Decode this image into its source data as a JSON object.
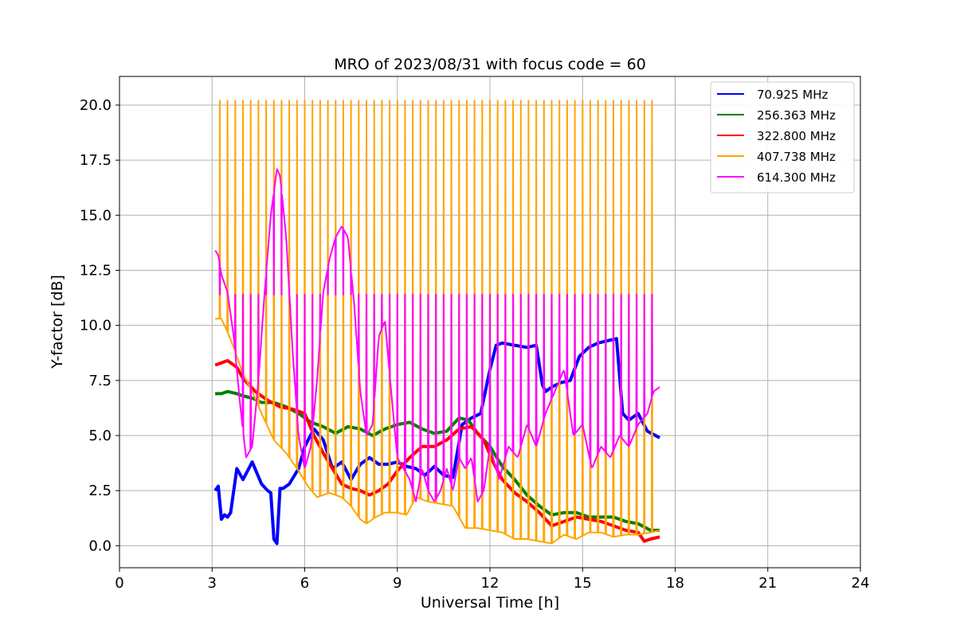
{
  "chart_data": {
    "type": "line",
    "title": "MRO of 2023/08/31 with focus code = 60",
    "xlabel": "Universal Time [h]",
    "ylabel": "Y-factor [dB]",
    "xlim": [
      0,
      24
    ],
    "ylim": [
      -1,
      21.3
    ],
    "xticks": [
      0,
      3,
      6,
      9,
      12,
      15,
      18,
      21,
      24
    ],
    "xtick_labels": [
      "0",
      "3",
      "6",
      "9",
      "12",
      "15",
      "18",
      "21",
      "24"
    ],
    "yticks": [
      0,
      2.5,
      5,
      7.5,
      10,
      12.5,
      15,
      17.5,
      20
    ],
    "ytick_labels": [
      "0.0",
      "2.5",
      "5.0",
      "7.5",
      "10.0",
      "12.5",
      "15.0",
      "17.5",
      "20.0"
    ],
    "grid": true,
    "legend_position": "top-right",
    "series": [
      {
        "name": "  70.925 MHz",
        "color": "#0000ff",
        "x": [
          3.1,
          3.2,
          3.3,
          3.4,
          3.5,
          3.6,
          3.8,
          4.0,
          4.3,
          4.6,
          4.8,
          4.9,
          5.0,
          5.1,
          5.2,
          5.3,
          5.5,
          5.8,
          6.0,
          6.3,
          6.6,
          6.9,
          7.2,
          7.5,
          7.8,
          8.1,
          8.4,
          8.7,
          9.0,
          9.3,
          9.6,
          9.9,
          10.2,
          10.5,
          10.8,
          11.1,
          11.4,
          11.7,
          12.0,
          12.2,
          12.4,
          12.8,
          13.2,
          13.5,
          13.7,
          13.8,
          14.0,
          14.3,
          14.6,
          14.9,
          15.2,
          15.5,
          15.8,
          16.1,
          16.3,
          16.5,
          16.8,
          17.1,
          17.5
        ],
        "y": [
          2.5,
          2.7,
          1.2,
          1.4,
          1.3,
          1.5,
          3.5,
          3.0,
          3.8,
          2.8,
          2.5,
          2.4,
          0.3,
          0.1,
          2.6,
          2.6,
          2.8,
          3.5,
          4.5,
          5.3,
          4.8,
          3.5,
          3.8,
          3.0,
          3.7,
          4.0,
          3.7,
          3.7,
          3.8,
          3.6,
          3.5,
          3.2,
          3.6,
          3.2,
          3.1,
          5.5,
          5.8,
          6.0,
          8.0,
          9.1,
          9.2,
          9.1,
          9.0,
          9.1,
          7.3,
          7.0,
          7.2,
          7.4,
          7.5,
          8.6,
          9.0,
          9.2,
          9.3,
          9.4,
          6.0,
          5.7,
          6.0,
          5.2,
          4.9
        ]
      },
      {
        "name": "256.363 MHz",
        "color": "#008000",
        "x": [
          3.1,
          3.3,
          3.5,
          3.8,
          4.0,
          4.3,
          4.6,
          5.0,
          5.4,
          5.8,
          6.2,
          6.6,
          7.0,
          7.4,
          7.8,
          8.2,
          8.6,
          9.0,
          9.4,
          9.8,
          10.2,
          10.6,
          11.0,
          11.3,
          11.6,
          12.0,
          12.4,
          12.8,
          13.2,
          13.6,
          14.0,
          14.4,
          14.8,
          15.2,
          15.6,
          16.0,
          16.4,
          16.8,
          17.2,
          17.5
        ],
        "y": [
          6.9,
          6.9,
          7.0,
          6.9,
          6.8,
          6.7,
          6.5,
          6.5,
          6.3,
          6.0,
          5.6,
          5.4,
          5.1,
          5.4,
          5.3,
          5.0,
          5.3,
          5.5,
          5.6,
          5.3,
          5.1,
          5.2,
          5.8,
          5.7,
          5.1,
          4.5,
          3.6,
          3.0,
          2.3,
          1.8,
          1.4,
          1.5,
          1.5,
          1.3,
          1.3,
          1.3,
          1.1,
          1.0,
          0.7,
          0.7
        ]
      },
      {
        "name": "322.800 MHz",
        "color": "#ff0000",
        "x": [
          3.1,
          3.3,
          3.5,
          3.8,
          4.0,
          4.4,
          4.8,
          5.2,
          5.6,
          6.0,
          6.3,
          6.6,
          6.9,
          7.2,
          7.5,
          7.8,
          8.1,
          8.4,
          8.7,
          9.0,
          9.4,
          9.8,
          10.2,
          10.6,
          11.0,
          11.4,
          11.8,
          12.1,
          12.4,
          12.8,
          13.2,
          13.6,
          14.0,
          14.4,
          14.8,
          15.2,
          15.6,
          16.0,
          16.4,
          16.8,
          17.0,
          17.2,
          17.5
        ],
        "y": [
          8.2,
          8.3,
          8.4,
          8.1,
          7.6,
          7.0,
          6.6,
          6.3,
          6.2,
          6.0,
          5.0,
          4.2,
          3.5,
          2.8,
          2.6,
          2.5,
          2.3,
          2.5,
          2.8,
          3.4,
          4.0,
          4.5,
          4.5,
          4.8,
          5.3,
          5.4,
          4.8,
          3.8,
          3.0,
          2.4,
          2.0,
          1.5,
          0.9,
          1.1,
          1.3,
          1.2,
          1.1,
          0.9,
          0.7,
          0.6,
          0.2,
          0.3,
          0.4
        ]
      },
      {
        "name": "407.738 MHz",
        "color": "#ffa500",
        "x": [
          3.1,
          3.3,
          3.5,
          3.7,
          4.0,
          4.3,
          4.6,
          5.0,
          5.4,
          5.8,
          6.1,
          6.4,
          6.8,
          7.2,
          7.5,
          7.8,
          8.0,
          8.3,
          8.6,
          9.0,
          9.3,
          9.6,
          10.0,
          10.4,
          10.8,
          11.2,
          11.6,
          12.0,
          12.4,
          12.8,
          13.2,
          13.6,
          14.0,
          14.4,
          14.8,
          15.2,
          15.6,
          16.0,
          16.4,
          16.8,
          17.2,
          17.5
        ],
        "y": [
          10.3,
          10.3,
          9.7,
          9.0,
          7.8,
          7.0,
          6.0,
          4.8,
          4.2,
          3.4,
          2.7,
          2.2,
          2.4,
          2.2,
          1.8,
          1.2,
          1.0,
          1.3,
          1.5,
          1.5,
          1.4,
          2.2,
          2.0,
          1.9,
          1.8,
          0.8,
          0.8,
          0.7,
          0.6,
          0.3,
          0.3,
          0.2,
          0.1,
          0.5,
          0.3,
          0.6,
          0.6,
          0.4,
          0.5,
          0.5,
          0.6,
          0.7
        ],
        "pulse_peak": 20.2,
        "pulse_start": 3.25,
        "pulse_end": 17.5,
        "pulse_period": 0.25
      },
      {
        "name": "614.300 MHz",
        "color": "#ff00ff",
        "x": [
          3.1,
          3.2,
          3.3,
          3.5,
          3.7,
          3.9,
          4.1,
          4.3,
          4.5,
          4.7,
          4.9,
          5.1,
          5.2,
          5.4,
          5.6,
          5.8,
          6.0,
          6.2,
          6.4,
          6.6,
          6.8,
          7.0,
          7.2,
          7.4,
          7.6,
          7.8,
          8.0,
          8.2,
          8.4,
          8.6,
          8.8,
          9.0,
          9.2,
          9.4,
          9.6,
          9.8,
          10.0,
          10.2,
          10.4,
          10.6,
          10.8,
          11.0,
          11.2,
          11.4,
          11.6,
          11.8,
          12.0,
          12.3,
          12.6,
          12.9,
          13.2,
          13.5,
          13.8,
          14.1,
          14.4,
          14.7,
          15.0,
          15.3,
          15.6,
          15.9,
          16.2,
          16.5,
          16.8,
          17.1,
          17.3,
          17.5
        ],
        "y": [
          13.4,
          13.2,
          12.3,
          11.5,
          9.5,
          6.5,
          4.0,
          4.5,
          7.5,
          11.5,
          15.0,
          17.1,
          16.8,
          14.0,
          9.0,
          5.0,
          3.5,
          4.5,
          7.5,
          11.5,
          13.0,
          14.0,
          14.5,
          14.0,
          11.0,
          7.0,
          5.0,
          5.5,
          9.5,
          10.2,
          7.0,
          4.0,
          3.5,
          3.0,
          2.0,
          3.5,
          2.5,
          2.0,
          2.5,
          3.5,
          2.5,
          4.0,
          3.5,
          4.0,
          2.0,
          2.5,
          4.5,
          3.0,
          4.5,
          4.0,
          5.5,
          4.5,
          6.0,
          7.0,
          8.0,
          5.0,
          5.5,
          3.5,
          4.5,
          4.0,
          5.0,
          4.5,
          5.5,
          6.0,
          7.0,
          7.2
        ],
        "pulse_peak": 11.4,
        "pulse_start": 3.25,
        "pulse_end": 17.5,
        "pulse_period": 0.25
      }
    ]
  }
}
